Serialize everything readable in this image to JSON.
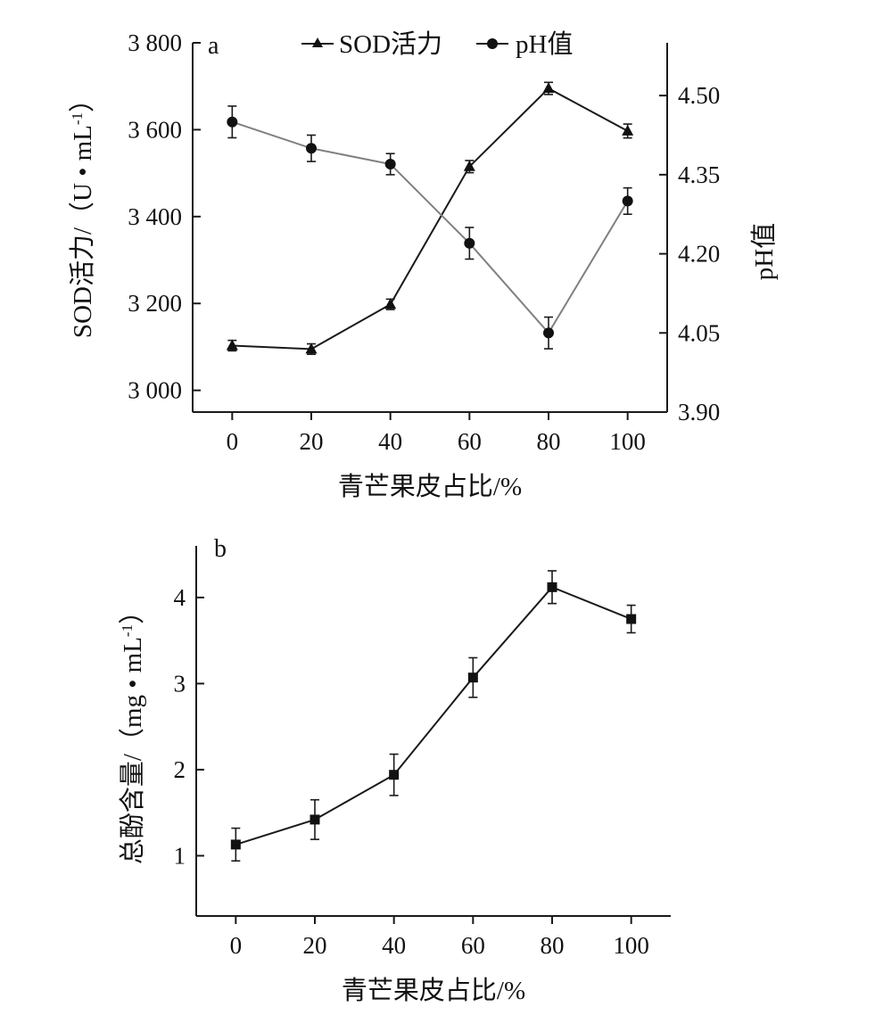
{
  "chart_data": [
    {
      "type": "line",
      "panel_label": "a",
      "title": "",
      "xlabel": "青芒果皮占比/%",
      "ylabel": "SOD活力/（U • mL",
      "ylabel_sup": "-1",
      "ylabel_close": "）",
      "y2label": "pH值",
      "categories": [
        "0",
        "20",
        "40",
        "60",
        "80",
        "100"
      ],
      "x": [
        0,
        20,
        40,
        60,
        80,
        100
      ],
      "xlim": [
        -10,
        110
      ],
      "ylim": [
        2950,
        3800
      ],
      "yticks": [
        3000,
        3200,
        3400,
        3600,
        3800
      ],
      "yticklabels": [
        "3 000",
        "3 200",
        "3 400",
        "3 600",
        "3 800"
      ],
      "y2lim": [
        3.9,
        4.6
      ],
      "y2ticks": [
        3.9,
        4.05,
        4.2,
        4.35,
        4.5
      ],
      "y2ticklabels": [
        "3.90",
        "4.05",
        "4.20",
        "4.35",
        "4.50"
      ],
      "legend_position": "top-center",
      "series": [
        {
          "name": "SOD活力",
          "axis": "left",
          "marker": "triangle",
          "color": "#1a1a1a",
          "values": [
            3103,
            3095,
            3198,
            3515,
            3695,
            3597
          ],
          "errors": [
            12,
            12,
            12,
            14,
            14,
            16
          ]
        },
        {
          "name": "pH值",
          "axis": "right",
          "marker": "circle",
          "color": "#808080",
          "values": [
            4.45,
            4.4,
            4.37,
            4.22,
            4.05,
            4.3
          ],
          "errors": [
            0.03,
            0.025,
            0.02,
            0.03,
            0.03,
            0.025
          ]
        }
      ]
    },
    {
      "type": "line",
      "panel_label": "b",
      "title": "",
      "xlabel": "青芒果皮占比/%",
      "ylabel": "总酚含量/（mg • mL",
      "ylabel_sup": "-1",
      "ylabel_close": "）",
      "categories": [
        "0",
        "20",
        "40",
        "60",
        "80",
        "100"
      ],
      "x": [
        0,
        20,
        40,
        60,
        80,
        100
      ],
      "xlim": [
        -10,
        110
      ],
      "ylim": [
        0.3,
        4.6
      ],
      "yticks": [
        1,
        2,
        3,
        4
      ],
      "yticklabels": [
        "1",
        "2",
        "3",
        "4"
      ],
      "series": [
        {
          "name": "总酚含量",
          "axis": "left",
          "marker": "square",
          "color": "#1a1a1a",
          "values": [
            1.13,
            1.42,
            1.94,
            3.07,
            4.12,
            3.75
          ],
          "errors": [
            0.19,
            0.23,
            0.24,
            0.23,
            0.19,
            0.16
          ]
        }
      ]
    }
  ]
}
